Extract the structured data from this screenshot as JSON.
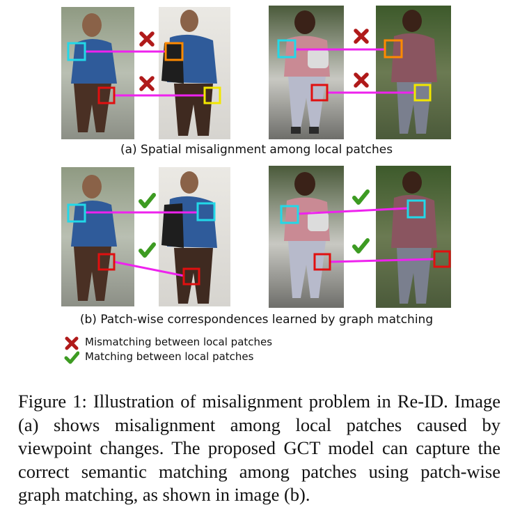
{
  "panel_a": {
    "caption": "(a) Spatial misalignment among local patches"
  },
  "panel_b": {
    "caption": "(b) Patch-wise correspondences learned by graph matching"
  },
  "legend": {
    "mismatch": {
      "label": "Mismatching between local patches",
      "icon": "x-mark-icon",
      "color": "#b01a1a"
    },
    "match": {
      "label": "Matching between local patches",
      "icon": "check-mark-icon",
      "color": "#3d9b22"
    }
  },
  "colors": {
    "patch_cyan": "#22d8e8",
    "patch_orange": "#ff8a00",
    "patch_red": "#e01010",
    "patch_yellow": "#f2e600",
    "link_magenta": "#ee22ee"
  },
  "figure_caption": "Figure 1: Illustration of misalignment problem in Re-ID. Image (a) shows misalignment among local patches caused by viewpoint changes. The proposed GCT model can capture the correct semantic matching among patches using patch-wise graph matching, as shown in image (b)."
}
